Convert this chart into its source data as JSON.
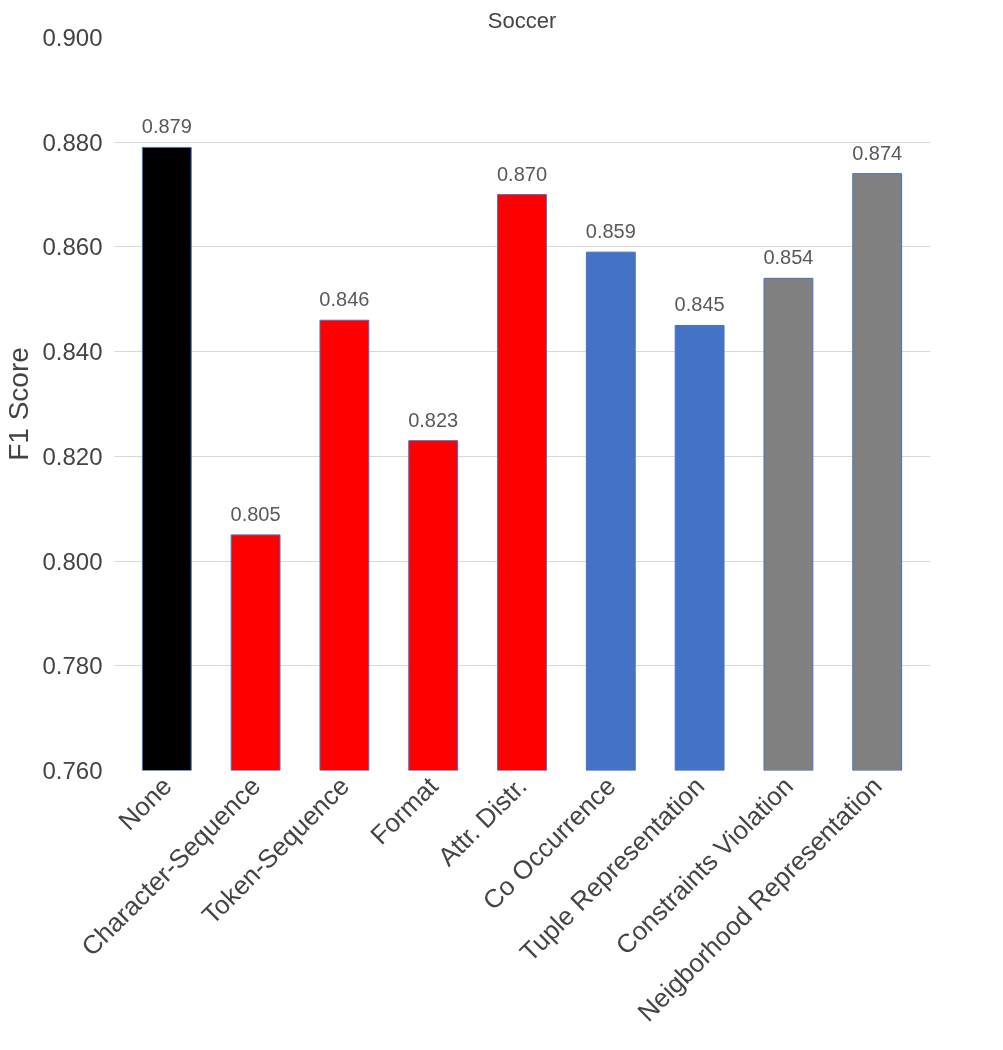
{
  "chart_data": {
    "type": "bar",
    "title": "Soccer",
    "ylabel": "F1 Score",
    "categories": [
      "None",
      "Character-Sequence",
      "Token-Sequence",
      "Format",
      "Attr. Distr.",
      "Co Occurrence",
      "Tuple Representation",
      "Constraints Violation",
      "Neigborhood Representation"
    ],
    "values": [
      0.879,
      0.805,
      0.846,
      0.823,
      0.87,
      0.859,
      0.845,
      0.854,
      0.874
    ],
    "value_labels": [
      "0.879",
      "0.805",
      "0.846",
      "0.823",
      "0.870",
      "0.859",
      "0.845",
      "0.854",
      "0.874"
    ],
    "colors": [
      "#000000",
      "#ff0000",
      "#ff0000",
      "#ff0000",
      "#ff0000",
      "#4472c4",
      "#4472c4",
      "#808080",
      "#808080"
    ],
    "ylim": [
      0.76,
      0.9
    ],
    "yticks": [
      {
        "value": 0.76,
        "label": "0.760"
      },
      {
        "value": 0.78,
        "label": "0.780"
      },
      {
        "value": 0.8,
        "label": "0.800"
      },
      {
        "value": 0.82,
        "label": "0.820"
      },
      {
        "value": 0.84,
        "label": "0.840"
      },
      {
        "value": 0.86,
        "label": "0.860"
      },
      {
        "value": 0.88,
        "label": "0.880"
      },
      {
        "value": 0.9,
        "label": "0.900"
      }
    ],
    "grid": "y"
  }
}
